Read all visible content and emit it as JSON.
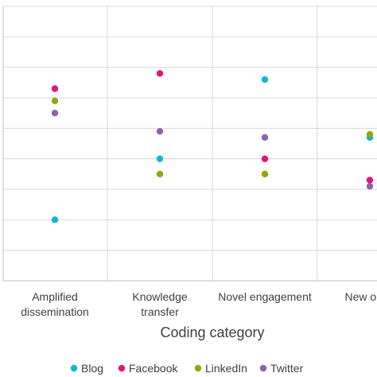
{
  "chart_data": {
    "type": "scatter",
    "title": "",
    "xlabel": "Coding category",
    "ylabel": "",
    "categories": [
      [
        "Amplified",
        "dissemination"
      ],
      [
        "Knowledge",
        "transfer"
      ],
      [
        "Novel engagement"
      ],
      [
        "New oppo"
      ]
    ],
    "ylim": [
      0,
      9
    ],
    "grid": true,
    "legend_position": "bottom",
    "series": [
      {
        "name": "Blog",
        "color": "#12B5D9",
        "values": [
          2,
          4,
          6.6,
          4.7
        ]
      },
      {
        "name": "Facebook",
        "color": "#E6137A",
        "values": [
          6.3,
          6.8,
          4,
          3.3
        ]
      },
      {
        "name": "LinkedIn",
        "color": "#8FAA0C",
        "values": [
          5.9,
          3.5,
          3.5,
          4.8
        ]
      },
      {
        "name": "Twitter",
        "color": "#8E62B2",
        "values": [
          5.5,
          4.9,
          4.7,
          3.1
        ]
      }
    ]
  }
}
